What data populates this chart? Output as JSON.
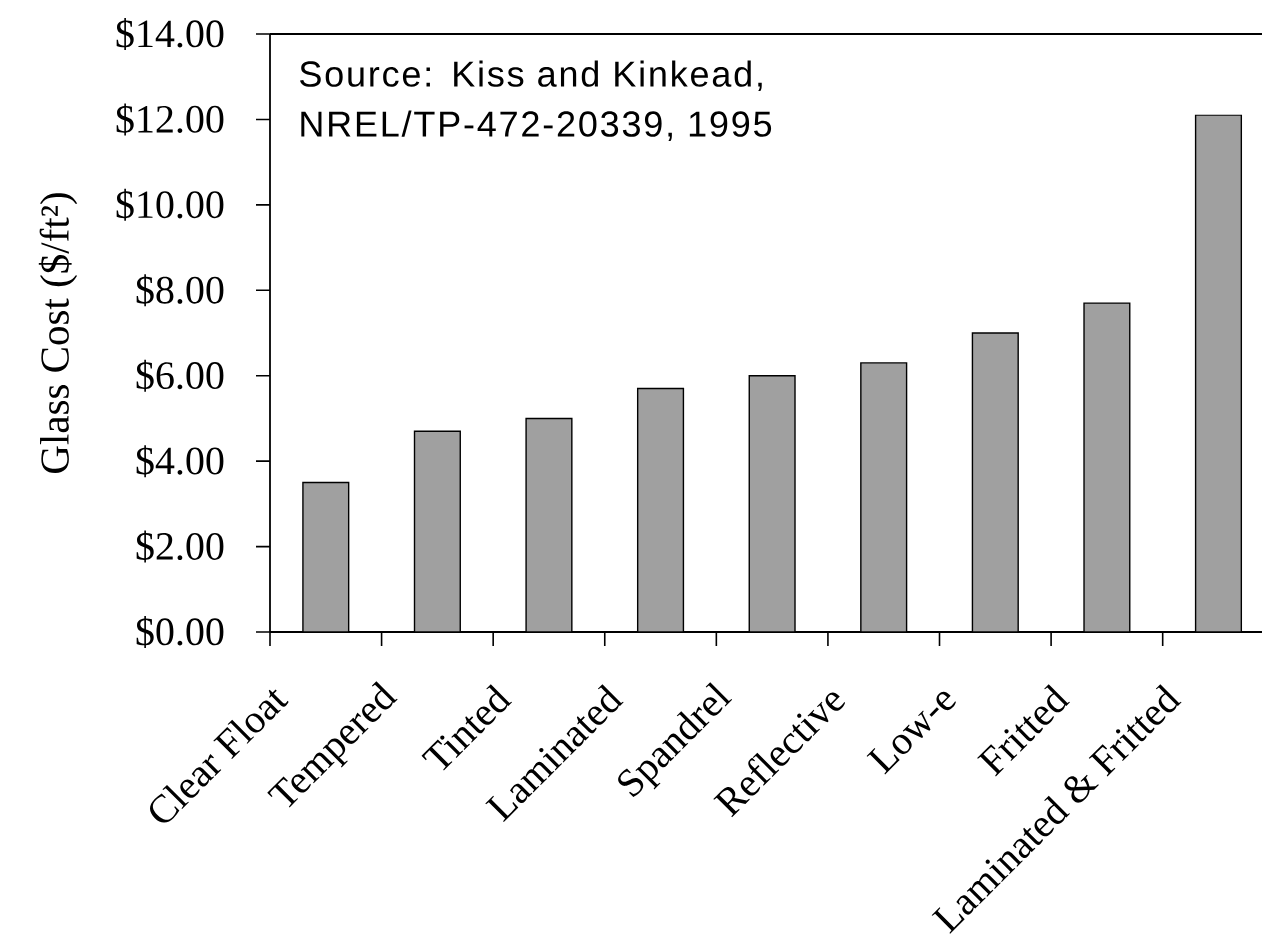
{
  "chart_data": {
    "type": "bar",
    "ylabel": "Glass Cost ($/ft²)",
    "annotations": [
      "Source: Kiss and Kinkead, NREL/TP-472-20339, 1995"
    ],
    "categories": [
      "Clear Float",
      "Tempered",
      "Tinted",
      "Laminated",
      "Spandrel",
      "Reflective",
      "Low-e",
      "Fritted",
      "Laminated & Fritted"
    ],
    "values": [
      3.5,
      4.7,
      5.0,
      5.7,
      6.0,
      6.3,
      7.0,
      7.7,
      12.1
    ],
    "color": "#a0a0a0",
    "ylim": [
      0,
      14
    ],
    "yticks": [
      {
        "value": 0,
        "label": "$0.00"
      },
      {
        "value": 2,
        "label": "$2.00"
      },
      {
        "value": 4,
        "label": "$4.00"
      },
      {
        "value": 6,
        "label": "$6.00"
      },
      {
        "value": 8,
        "label": "$8.00"
      },
      {
        "value": 10,
        "label": "$10.00"
      },
      {
        "value": 12,
        "label": "$12.00"
      },
      {
        "value": 14,
        "label": "$14.00"
      }
    ]
  }
}
